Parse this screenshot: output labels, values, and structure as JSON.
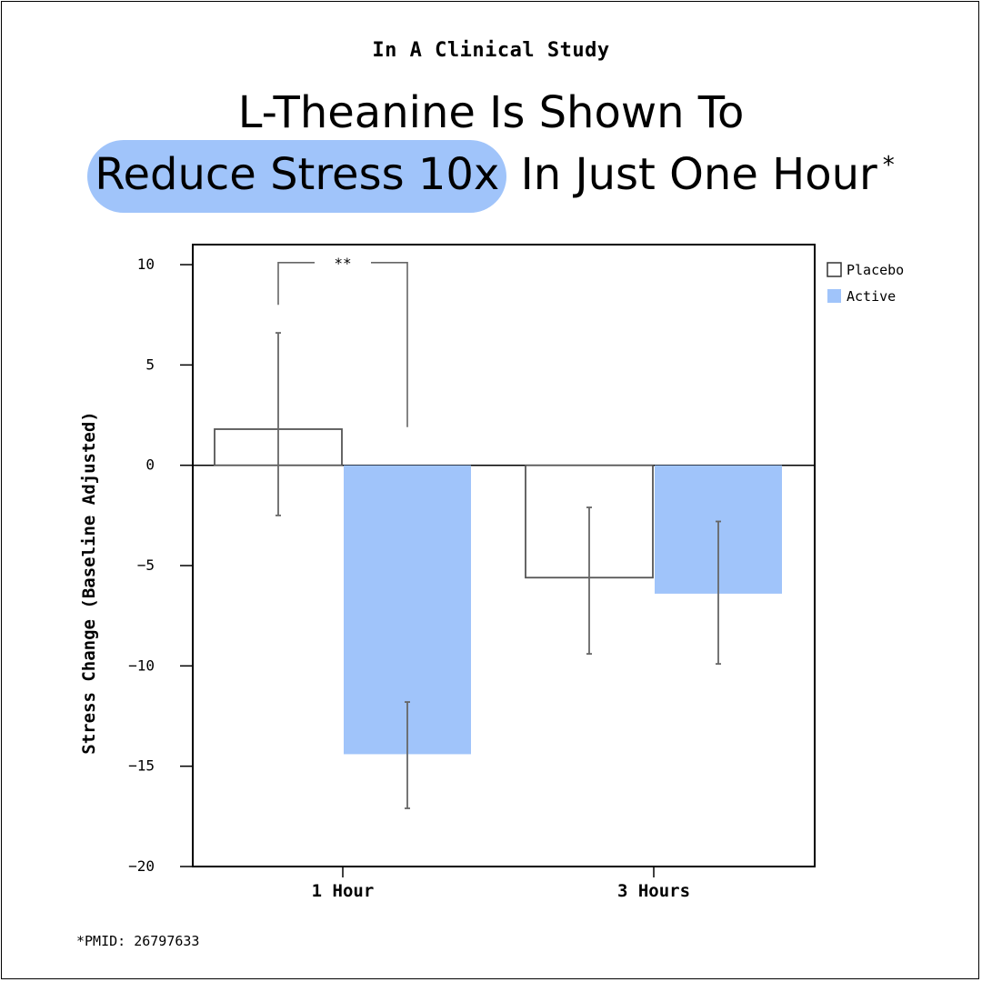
{
  "header": {
    "eyebrow": "In A Clinical Study",
    "line1": "L-Theanine Is Shown To",
    "line2_highlight": "Reduce Stress 10x",
    "line2_rest": "In Just One Hour",
    "asterisk": "*"
  },
  "footnote": "*PMID: 26797633",
  "colors": {
    "highlight": "#a0c4fa",
    "active": "#a0c4fa",
    "placebo_fill": "#ffffff",
    "placebo_stroke": "#555555",
    "error_bar": "#666666"
  },
  "chart_data": {
    "type": "bar",
    "categories": [
      "1 Hour",
      "3 Hours"
    ],
    "series": [
      {
        "name": "Placebo",
        "values": [
          1.8,
          -5.6
        ],
        "err_low": [
          -2.5,
          -9.4
        ],
        "err_high": [
          6.6,
          -2.1
        ]
      },
      {
        "name": "Active",
        "values": [
          -14.4,
          -6.4
        ],
        "err_low": [
          -17.1,
          -9.9
        ],
        "err_high": [
          -11.8,
          -2.8
        ]
      }
    ],
    "ylabel": "Stress Change (Baseline Adjusted)",
    "xlabel": "",
    "ylim": [
      -20,
      11
    ],
    "yticks": [
      10,
      5,
      0,
      -5,
      -10,
      -15,
      -20
    ],
    "legend": "top-right",
    "significance": {
      "label": "**",
      "category": "1 Hour"
    }
  }
}
